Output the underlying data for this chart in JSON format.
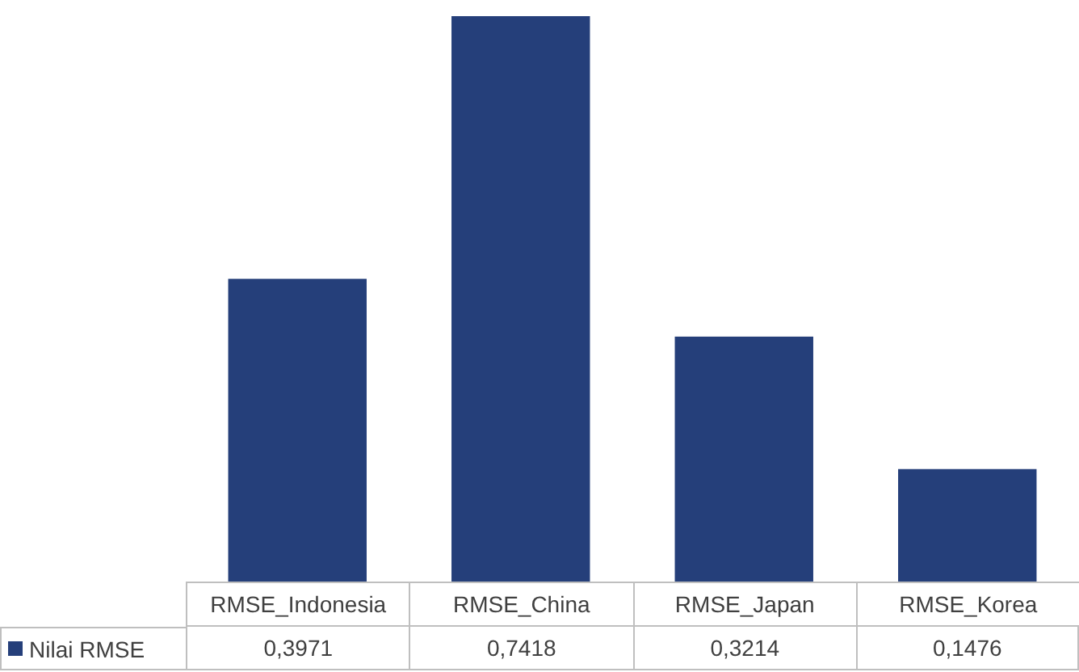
{
  "chart_data": {
    "type": "bar",
    "categories": [
      "RMSE_Indonesia",
      "RMSE_China",
      "RMSE_Japan",
      "RMSE_Korea"
    ],
    "series": [
      {
        "name": "Nilai RMSE",
        "color": "#253f7a",
        "values": [
          0.3971,
          0.7418,
          0.3214,
          0.1476
        ],
        "value_labels": [
          "0,3971",
          "0,7418",
          "0,3214",
          "0,1476"
        ]
      }
    ],
    "legend": "bottom"
  }
}
